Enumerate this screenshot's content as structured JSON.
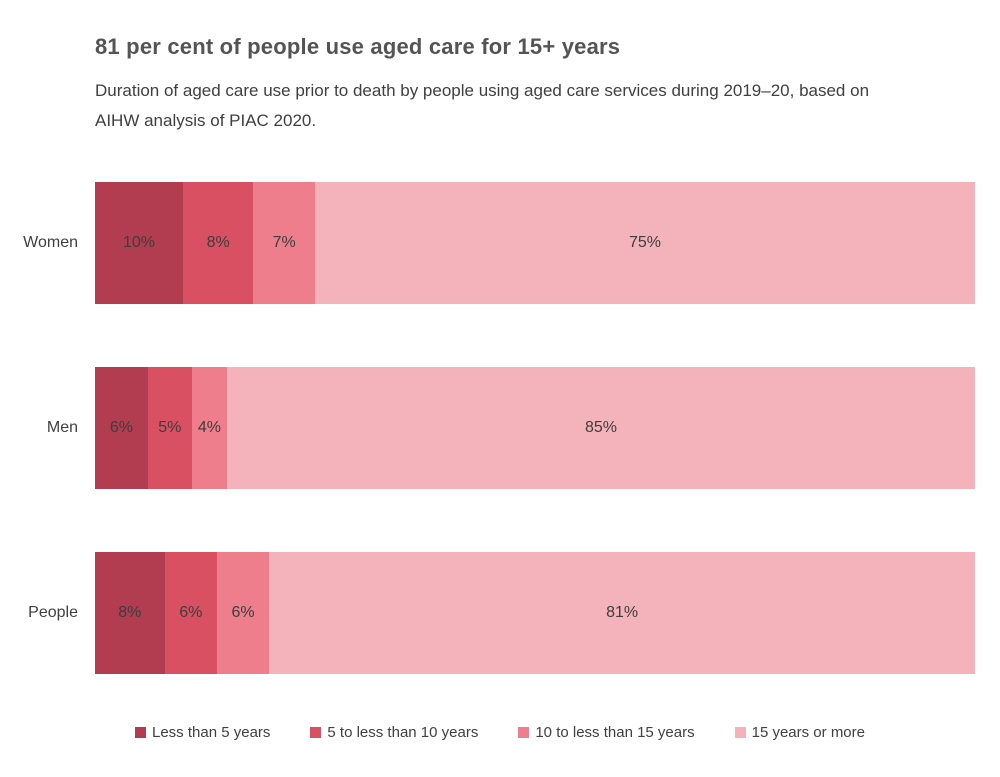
{
  "chart_data": {
    "type": "bar",
    "orientation": "horizontal",
    "stacked": true,
    "title": "81 per cent of people use aged care for 15+ years",
    "subtitle": "Duration of aged care use prior to death by people using aged care services during 2019–20, based on AIHW analysis of PIAC 2020.",
    "categories": [
      "Women",
      "Men",
      "People"
    ],
    "series": [
      {
        "name": "Less than 5 years",
        "color": "#b23d51",
        "values": [
          10,
          6,
          8
        ]
      },
      {
        "name": "5 to less than 10 years",
        "color": "#d85062",
        "values": [
          8,
          5,
          6
        ]
      },
      {
        "name": "10 to less than 15 years",
        "color": "#ee7e8b",
        "values": [
          7,
          4,
          6
        ]
      },
      {
        "name": "15 years or more",
        "color": "#f4b3ba",
        "values": [
          75,
          85,
          81
        ]
      }
    ],
    "data_labels": {
      "Women": [
        "10%",
        "8%",
        "7%",
        "75%"
      ],
      "Men": [
        "6%",
        "5%",
        "4%",
        "85%"
      ],
      "People": [
        "8%",
        "6%",
        "6%",
        "81%"
      ]
    },
    "value_suffix": "%",
    "xlim": [
      0,
      100
    ],
    "grid": false,
    "axes_visible": false,
    "legend_position": "bottom",
    "colors": {
      "title_text": "#545454",
      "body_text": "#3f3f3f",
      "segment_label_text": "#3d3d3d",
      "background": "#ffffff"
    }
  }
}
